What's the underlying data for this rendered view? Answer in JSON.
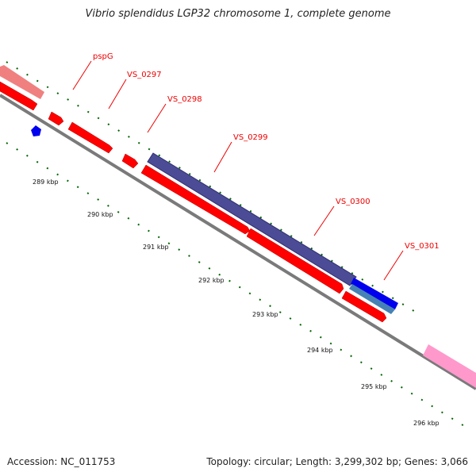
{
  "title": "Vibrio splendidus LGP32 chromosome 1, complete genome",
  "footer": {
    "accession": "Accession: NC_011753",
    "summary": "Topology: circular; Length: 3,299,302 bp; Genes: 3,066"
  },
  "colors": {
    "backbone": "#7a7a7a",
    "gene_red": "#ff0000",
    "gene_salmon": "#f08080",
    "gene_pink": "#ff99cc",
    "gene_slate": "#4b4b96",
    "gene_blue": "#0000ee",
    "gene_steel": "#4682b4",
    "label_red": "#ee0000",
    "tick_green": "#006400"
  },
  "ticks": {
    "labels": [
      "289 kbp",
      "290 kbp",
      "291 kbp",
      "292 kbp",
      "293 kbp",
      "294 kbp",
      "295 kbp",
      "296 kbp"
    ]
  },
  "gene_labels": [
    "pspG",
    "VS_0297",
    "VS_0298",
    "VS_0299",
    "VS_0300",
    "VS_0301"
  ]
}
